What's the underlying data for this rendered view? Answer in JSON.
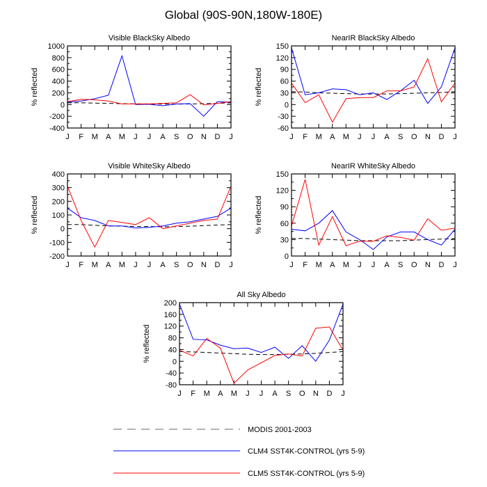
{
  "title": "Global (90S-90N,180W-180E)",
  "months": [
    "J",
    "F",
    "M",
    "A",
    "M",
    "J",
    "J",
    "A",
    "S",
    "O",
    "N",
    "D",
    "J"
  ],
  "colors": {
    "modis": "#000000",
    "clm4": "#0000ff",
    "clm5": "#ff0000",
    "legend_modis": "#999999"
  },
  "legend": {
    "modis": "MODIS 2001-2003",
    "clm4": "CLM4 SST4K-CONTROL (yrs 5-9)",
    "clm5": "CLM5 SST4K-CONTROL (yrs 5-9)"
  },
  "chart_data": [
    {
      "type": "line",
      "title": "Visible BlackSky Albedo",
      "ylabel": "% reflected",
      "ylim": [
        -400,
        1000
      ],
      "yticks": [
        -400,
        -200,
        0,
        200,
        400,
        600,
        800,
        1000
      ],
      "series": [
        {
          "name": "MODIS 2001-2003",
          "values": [
            30,
            30,
            25,
            20,
            15,
            12,
            10,
            8,
            8,
            10,
            15,
            20,
            30
          ]
        },
        {
          "name": "CLM4 SST4K-CONTROL (yrs 5-9)",
          "values": [
            40,
            60,
            100,
            160,
            830,
            0,
            5,
            -20,
            10,
            15,
            -200,
            50,
            40
          ]
        },
        {
          "name": "CLM5 SST4K-CONTROL (yrs 5-9)",
          "values": [
            50,
            90,
            80,
            60,
            10,
            10,
            10,
            20,
            30,
            170,
            -5,
            20,
            50
          ]
        }
      ]
    },
    {
      "type": "line",
      "title": "NearIR BlackSky Albedo",
      "ylabel": "% reflected",
      "ylim": [
        -60,
        150
      ],
      "yticks": [
        -60,
        -30,
        0,
        30,
        60,
        90,
        120,
        150
      ],
      "series": [
        {
          "name": "MODIS 2001-2003",
          "values": [
            33,
            32,
            30,
            29,
            28,
            27,
            27,
            27,
            28,
            29,
            30,
            31,
            33
          ]
        },
        {
          "name": "CLM4 SST4K-CONTROL (yrs 5-9)",
          "values": [
            145,
            25,
            30,
            40,
            38,
            25,
            30,
            13,
            35,
            62,
            3,
            45,
            145
          ]
        },
        {
          "name": "CLM5 SST4K-CONTROL (yrs 5-9)",
          "values": [
            55,
            5,
            25,
            -45,
            15,
            18,
            18,
            35,
            35,
            45,
            117,
            7,
            55
          ]
        }
      ]
    },
    {
      "type": "line",
      "title": "Visible WhiteSky Albedo",
      "ylabel": "% reflected",
      "ylim": [
        -200,
        400
      ],
      "yticks": [
        -200,
        -100,
        0,
        100,
        200,
        300,
        400
      ],
      "series": [
        {
          "name": "MODIS 2001-2003",
          "values": [
            30,
            30,
            25,
            20,
            18,
            16,
            15,
            14,
            15,
            18,
            22,
            27,
            30
          ]
        },
        {
          "name": "CLM4 SST4K-CONTROL (yrs 5-9)",
          "values": [
            150,
            80,
            60,
            20,
            20,
            5,
            10,
            20,
            40,
            50,
            70,
            90,
            150
          ]
        },
        {
          "name": "CLM5 SST4K-CONTROL (yrs 5-9)",
          "values": [
            310,
            60,
            -135,
            60,
            45,
            30,
            80,
            0,
            20,
            40,
            60,
            70,
            310
          ]
        }
      ]
    },
    {
      "type": "line",
      "title": "NearIR WhiteSky Albedo",
      "ylabel": "% reflected",
      "ylim": [
        0,
        150
      ],
      "yticks": [
        0,
        30,
        60,
        90,
        120,
        150
      ],
      "series": [
        {
          "name": "MODIS 2001-2003",
          "values": [
            32,
            32,
            31,
            30,
            29,
            28,
            28,
            28,
            28,
            29,
            30,
            31,
            32
          ]
        },
        {
          "name": "CLM4 SST4K-CONTROL (yrs 5-9)",
          "values": [
            49,
            46,
            60,
            83,
            44,
            30,
            12,
            35,
            44,
            44,
            30,
            20,
            49
          ]
        },
        {
          "name": "CLM5 SST4K-CONTROL (yrs 5-9)",
          "values": [
            55,
            140,
            20,
            72,
            19,
            27,
            27,
            37,
            34,
            29,
            68,
            47,
            51
          ]
        }
      ]
    },
    {
      "type": "line",
      "title": "All Sky Albedo",
      "ylabel": "% reflected",
      "ylim": [
        -80,
        200
      ],
      "yticks": [
        -80,
        -40,
        0,
        40,
        80,
        120,
        160,
        200
      ],
      "series": [
        {
          "name": "MODIS 2001-2003",
          "values": [
            33,
            32,
            30,
            28,
            26,
            24,
            23,
            23,
            24,
            25,
            27,
            30,
            33
          ]
        },
        {
          "name": "CLM4 SST4K-CONTROL (yrs 5-9)",
          "values": [
            195,
            75,
            73,
            55,
            43,
            45,
            30,
            48,
            10,
            53,
            0,
            72,
            195
          ]
        },
        {
          "name": "CLM5 SST4K-CONTROL (yrs 5-9)",
          "values": [
            38,
            18,
            78,
            45,
            -75,
            -30,
            -5,
            20,
            25,
            18,
            113,
            117,
            38
          ]
        }
      ]
    }
  ]
}
